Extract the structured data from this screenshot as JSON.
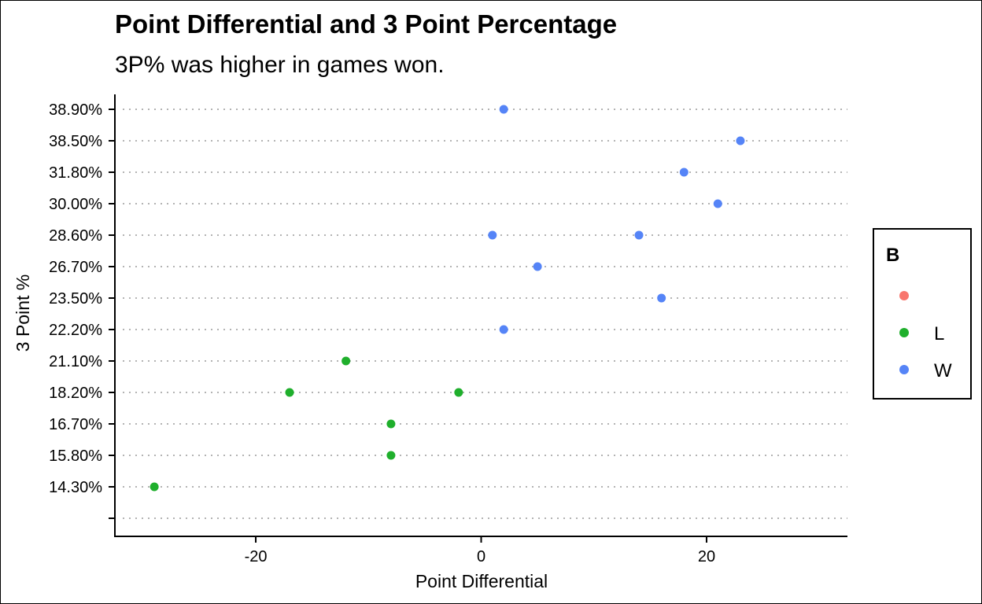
{
  "chart_data": {
    "type": "scatter",
    "title": "Point Differential and 3 Point Percentage",
    "subtitle": "3P% was higher in games won.",
    "xlabel": "Point Differential",
    "ylabel": "3 Point %",
    "x_ticks": [
      "-20",
      "0",
      "20"
    ],
    "x_tick_values": [
      -20,
      0,
      20
    ],
    "xlim": [
      -32.5,
      32.5
    ],
    "y_categories": [
      "",
      "14.30%",
      "15.80%",
      "16.70%",
      "18.20%",
      "21.10%",
      "22.20%",
      "23.50%",
      "26.70%",
      "28.60%",
      "30.00%",
      "31.80%",
      "38.50%",
      "38.90%"
    ],
    "grid": "horizontal dotted",
    "legend": {
      "title": "B",
      "position": "right",
      "entries": [
        {
          "label": "",
          "color": "#F8766D"
        },
        {
          "label": "L",
          "color": "#1FAF2C"
        },
        {
          "label": "W",
          "color": "#5584F7"
        }
      ]
    },
    "points": [
      {
        "x": 2,
        "y": "38.90%",
        "group": "W"
      },
      {
        "x": 23,
        "y": "38.50%",
        "group": "W"
      },
      {
        "x": 18,
        "y": "31.80%",
        "group": "W"
      },
      {
        "x": 21,
        "y": "30.00%",
        "group": "W"
      },
      {
        "x": 1,
        "y": "28.60%",
        "group": "W"
      },
      {
        "x": 14,
        "y": "28.60%",
        "group": "W"
      },
      {
        "x": 5,
        "y": "26.70%",
        "group": "W"
      },
      {
        "x": 16,
        "y": "23.50%",
        "group": "W"
      },
      {
        "x": 2,
        "y": "22.20%",
        "group": "W"
      },
      {
        "x": -12,
        "y": "21.10%",
        "group": "L"
      },
      {
        "x": -17,
        "y": "18.20%",
        "group": "L"
      },
      {
        "x": -2,
        "y": "18.20%",
        "group": "L"
      },
      {
        "x": -8,
        "y": "16.70%",
        "group": "L"
      },
      {
        "x": -8,
        "y": "15.80%",
        "group": "L"
      },
      {
        "x": -29,
        "y": "14.30%",
        "group": "L"
      }
    ]
  }
}
